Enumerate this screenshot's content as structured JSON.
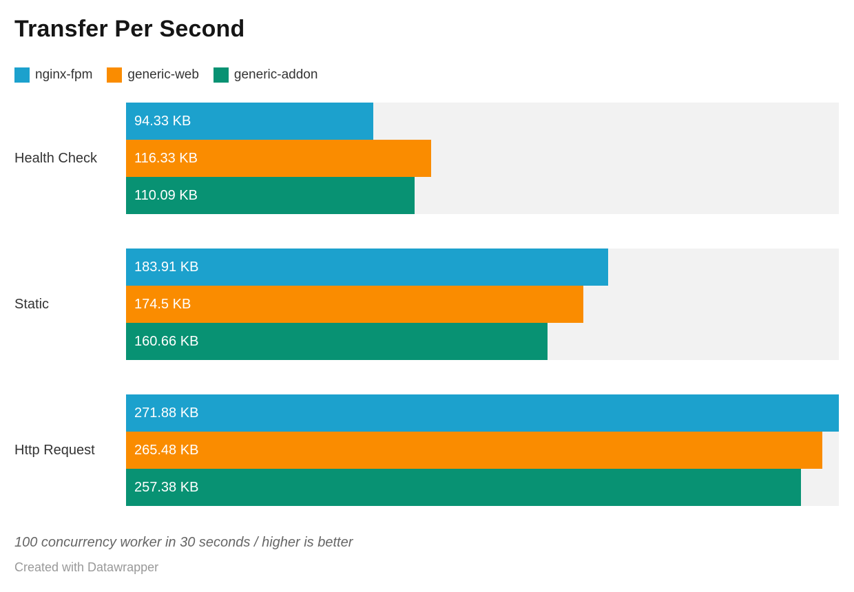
{
  "chart_data": {
    "type": "bar",
    "orientation": "horizontal",
    "title": "Transfer Per Second",
    "categories": [
      "Health Check",
      "Static",
      "Http Request"
    ],
    "series": [
      {
        "name": "nginx-fpm",
        "color": "#1ca1cd",
        "values": [
          94.33,
          183.91,
          271.88
        ],
        "value_labels": [
          "94.33 KB",
          "183.91 KB",
          "271.88 KB"
        ]
      },
      {
        "name": "generic-web",
        "color": "#fa8c00",
        "values": [
          116.33,
          174.5,
          265.48
        ],
        "value_labels": [
          "116.33 KB",
          "174.5 KB",
          "265.48 KB"
        ]
      },
      {
        "name": "generic-addon",
        "color": "#089273",
        "values": [
          110.09,
          160.66,
          257.38
        ],
        "value_labels": [
          "110.09 KB",
          "160.66 KB",
          "257.38 KB"
        ]
      }
    ],
    "unit": "KB",
    "xlim": [
      0,
      271.88
    ],
    "grid": false,
    "legend_position": "top-left",
    "track_color": "#f2f2f2",
    "value_label_position": "inside-start",
    "footnote": "100 concurrency worker in 30 seconds / higher is better",
    "attribution": "Created with Datawrapper"
  }
}
